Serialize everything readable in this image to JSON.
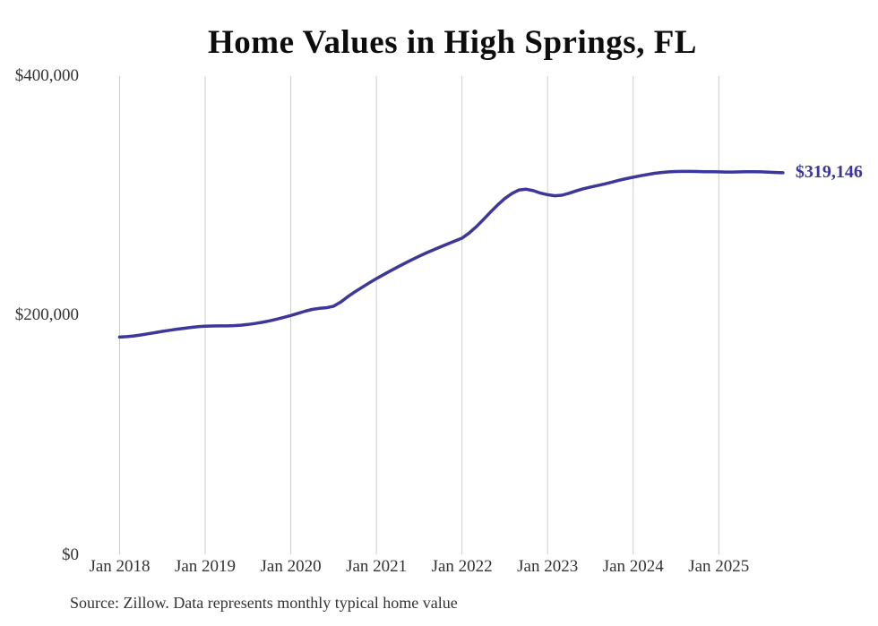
{
  "title": "Home Values in High Springs, FL",
  "source_note": "Source: Zillow. Data represents monthly typical home value",
  "colors": {
    "line": "#3c3799",
    "grid": "#cccccc",
    "tick_text": "#333333",
    "title_text": "#0d0d0d",
    "background": "#ffffff"
  },
  "chart_data": {
    "type": "line",
    "title": "Home Values in High Springs, FL",
    "xlabel": "",
    "ylabel": "",
    "ylim": [
      0,
      400000
    ],
    "y_tick_labels": [
      "$0",
      "$200,000",
      "$400,000"
    ],
    "x_tick_labels": [
      "Jan 2018",
      "Jan 2019",
      "Jan 2020",
      "Jan 2021",
      "Jan 2022",
      "Jan 2023",
      "Jan 2024",
      "Jan 2025"
    ],
    "x_start": "Jan 2018",
    "x_end": "Oct 2025",
    "frequency": "monthly",
    "grid": "vertical-only",
    "legend": "none",
    "end_label": "$319,146",
    "final_value": 319146,
    "series": [
      {
        "name": "Typical home value",
        "values": [
          181700,
          182100,
          182700,
          183500,
          184500,
          185500,
          186500,
          187400,
          188300,
          189100,
          189800,
          190400,
          190800,
          191000,
          191100,
          191100,
          191300,
          191700,
          192300,
          193100,
          194100,
          195300,
          196700,
          198200,
          199800,
          201600,
          203400,
          204900,
          205800,
          206300,
          207600,
          211000,
          215600,
          219600,
          223400,
          227100,
          230600,
          233900,
          237200,
          240400,
          243500,
          246500,
          249400,
          252100,
          254700,
          257200,
          259600,
          262100,
          264500,
          268800,
          274000,
          280000,
          286300,
          292300,
          297600,
          301800,
          304800,
          305400,
          304200,
          302200,
          300800,
          299900,
          300400,
          302000,
          304000,
          305800,
          307200,
          308500,
          309800,
          311300,
          312900,
          314200,
          315400,
          316600,
          317700,
          318700,
          319400,
          319900,
          320200,
          320300,
          320300,
          320200,
          320100,
          320000,
          319900,
          319800,
          319800,
          319900,
          320000,
          320000,
          319900,
          319700,
          319400,
          319146
        ]
      }
    ]
  }
}
